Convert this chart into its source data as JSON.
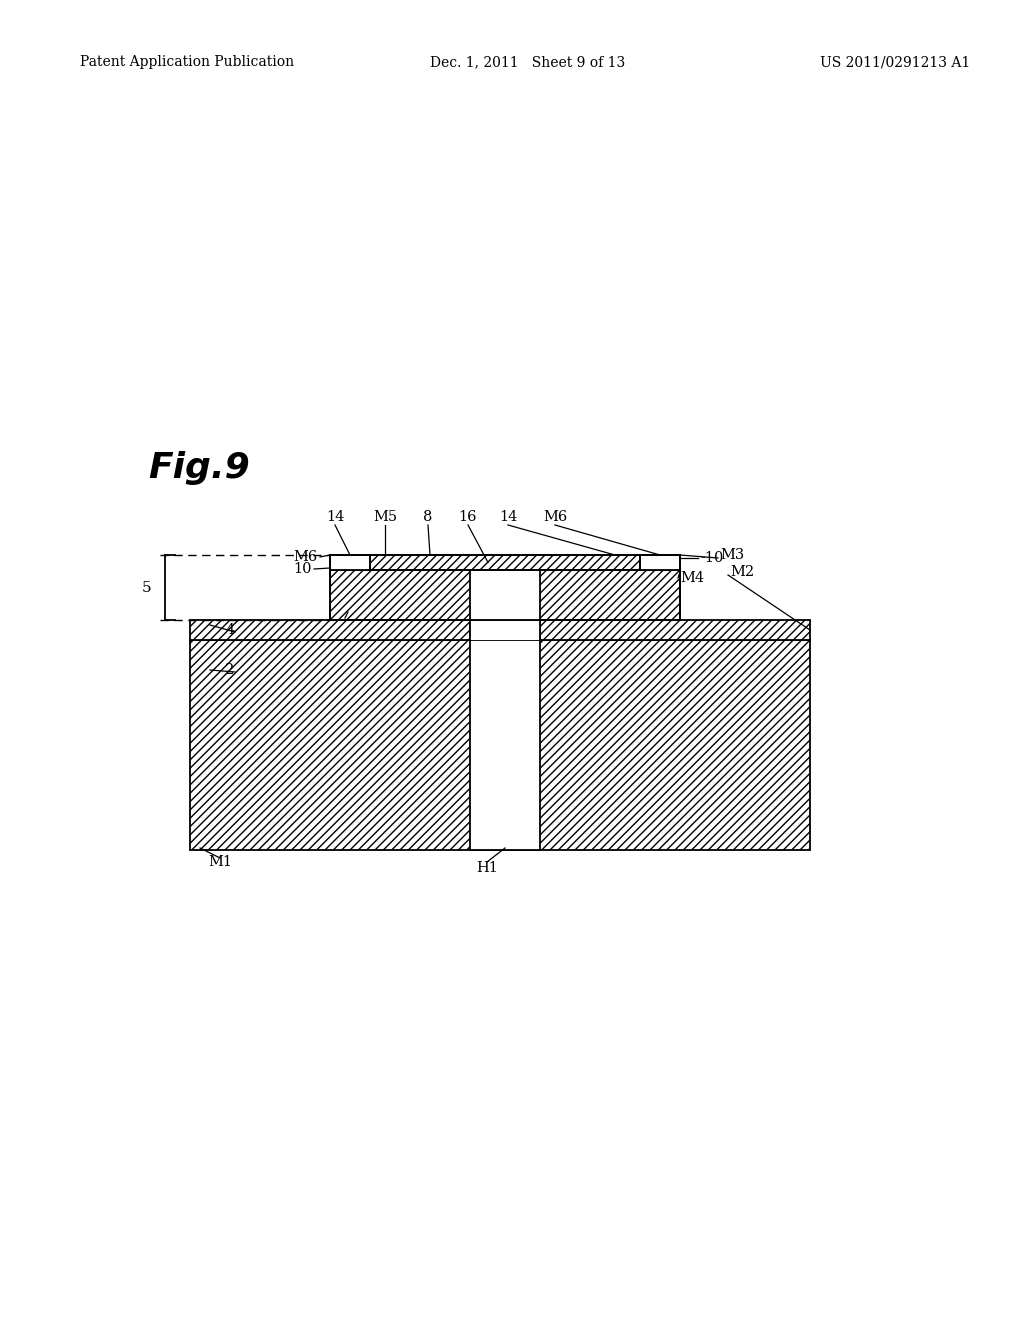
{
  "bg_color": "#ffffff",
  "header_left": "Patent Application Publication",
  "header_mid": "Dec. 1, 2011   Sheet 9 of 13",
  "header_right": "US 2011/0291213 A1",
  "fig_label": "Fig.9"
}
